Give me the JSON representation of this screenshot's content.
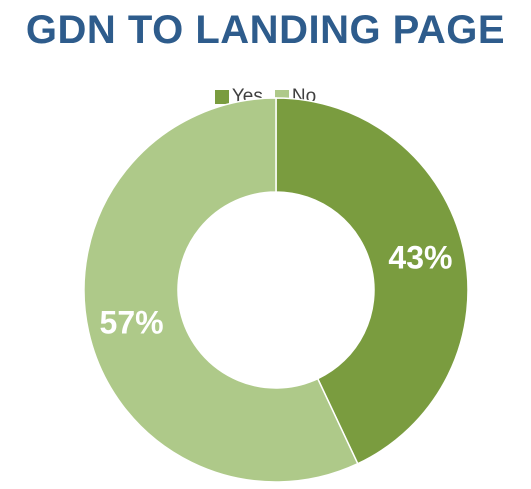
{
  "title": "GDN TO LANDING PAGE",
  "colors": {
    "title": "#2e5c8c",
    "yes": "#7a9c3f",
    "no": "#aec989",
    "slice_border": "#ffffff"
  },
  "chart_data": {
    "type": "pie",
    "variant": "doughnut",
    "title": "GDN TO LANDING PAGE",
    "categories": [
      "Yes",
      "No"
    ],
    "values": [
      43,
      57
    ],
    "value_labels": [
      "43%",
      "57%"
    ],
    "legend": {
      "placement": "top",
      "entries": [
        "Yes",
        "No"
      ]
    }
  }
}
